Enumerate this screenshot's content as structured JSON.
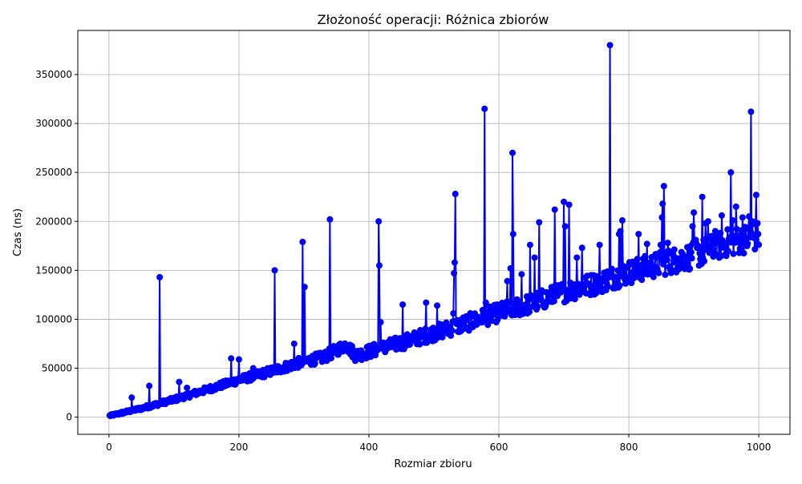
{
  "chart_data": {
    "type": "line",
    "title": "Złożoność operacji: Różnica zbiorów",
    "xlabel": "Rozmiar zbioru",
    "ylabel": "Czas (ns)",
    "xlim": [
      -48,
      1048
    ],
    "ylim": [
      -17500,
      395000
    ],
    "xticks": [
      0,
      200,
      400,
      600,
      800,
      1000
    ],
    "yticks": [
      0,
      50000,
      100000,
      150000,
      200000,
      250000,
      300000,
      350000
    ],
    "ytick_labels": [
      "0",
      "50000",
      "100000",
      "150000",
      "200000",
      "250000",
      "300000",
      "350000"
    ],
    "grid": true,
    "marker": "circle",
    "series": [
      {
        "color": "#0000ff",
        "baseline": [
          [
            1,
            1500
          ],
          [
            50,
            9000
          ],
          [
            100,
            18000
          ],
          [
            150,
            28000
          ],
          [
            200,
            38000
          ],
          [
            250,
            47000
          ],
          [
            300,
            57000
          ],
          [
            330,
            61000
          ],
          [
            365,
            74000
          ],
          [
            380,
            63000
          ],
          [
            400,
            67000
          ],
          [
            450,
            76000
          ],
          [
            500,
            86000
          ],
          [
            550,
            96000
          ],
          [
            600,
            107000
          ],
          [
            650,
            116000
          ],
          [
            700,
            128000
          ],
          [
            750,
            137000
          ],
          [
            800,
            148000
          ],
          [
            850,
            157000
          ],
          [
            900,
            165000
          ],
          [
            950,
            178000
          ],
          [
            1000,
            185000
          ]
        ],
        "spikes": [
          [
            35,
            20000
          ],
          [
            62,
            32000
          ],
          [
            78,
            143000
          ],
          [
            108,
            36000
          ],
          [
            120,
            30000
          ],
          [
            188,
            60000
          ],
          [
            200,
            59000
          ],
          [
            222,
            50000
          ],
          [
            255,
            150000
          ],
          [
            285,
            75000
          ],
          [
            298,
            179000
          ],
          [
            301,
            133000
          ],
          [
            340,
            202000
          ],
          [
            415,
            200000
          ],
          [
            416,
            155000
          ],
          [
            418,
            97000
          ],
          [
            452,
            115000
          ],
          [
            488,
            117000
          ],
          [
            505,
            114000
          ],
          [
            530,
            106000
          ],
          [
            531,
            147000
          ],
          [
            532,
            158000
          ],
          [
            533,
            228000
          ],
          [
            578,
            315000
          ],
          [
            580,
            117000
          ],
          [
            613,
            139000
          ],
          [
            618,
            152000
          ],
          [
            621,
            270000
          ],
          [
            622,
            187000
          ],
          [
            635,
            146000
          ],
          [
            648,
            176000
          ],
          [
            655,
            163000
          ],
          [
            662,
            199000
          ],
          [
            686,
            212000
          ],
          [
            700,
            220000
          ],
          [
            702,
            195000
          ],
          [
            708,
            217000
          ],
          [
            720,
            163000
          ],
          [
            728,
            173000
          ],
          [
            755,
            176000
          ],
          [
            771,
            380000
          ],
          [
            785,
            187000
          ],
          [
            787,
            190000
          ],
          [
            790,
            201000
          ],
          [
            815,
            187000
          ],
          [
            828,
            177000
          ],
          [
            849,
            176000
          ],
          [
            851,
            204000
          ],
          [
            852,
            218000
          ],
          [
            854,
            236000
          ],
          [
            860,
            178000
          ],
          [
            898,
            195000
          ],
          [
            900,
            209000
          ],
          [
            903,
            181000
          ],
          [
            913,
            225000
          ],
          [
            918,
            198000
          ],
          [
            922,
            200000
          ],
          [
            933,
            190000
          ],
          [
            943,
            206000
          ],
          [
            957,
            250000
          ],
          [
            960,
            201000
          ],
          [
            965,
            215000
          ],
          [
            975,
            204000
          ],
          [
            985,
            205000
          ],
          [
            988,
            312000
          ],
          [
            990,
            200000
          ],
          [
            996,
            227000
          ]
        ]
      }
    ]
  }
}
